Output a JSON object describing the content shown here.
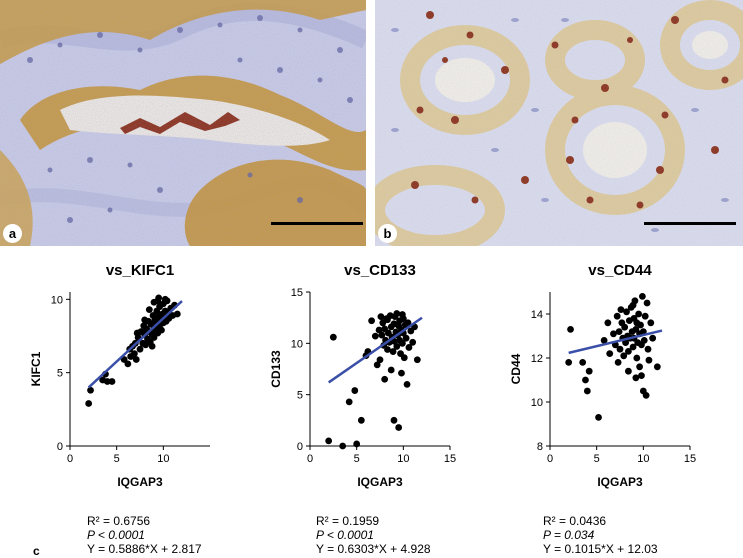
{
  "figure": {
    "panel_a_label": "a",
    "panel_b_label": "b",
    "panel_c_label": "c"
  },
  "colors": {
    "dot": "#000000",
    "fit_line": "#3a4fa8",
    "stain_brown": "#b8861e",
    "stain_dark": "#8a2a10",
    "hematoxylin_blue": "#8f95c8"
  },
  "chart_data": [
    {
      "type": "scatter",
      "title": "vs_KIFC1",
      "xlabel": "IQGAP3",
      "ylabel": "KIFC1",
      "xlim": [
        0,
        15
      ],
      "ylim": [
        0,
        10.5
      ],
      "xticks": [
        "0",
        "5",
        "10"
      ],
      "yticks": [
        "0",
        "5",
        "10"
      ],
      "fit": {
        "slope": 0.5886,
        "intercept": 2.817,
        "x_range": [
          2,
          12
        ]
      },
      "stats": {
        "r2": "R² = 0.6756",
        "p": "P < 0.0001",
        "equation": "Y = 0.5886*X + 2.817"
      },
      "points": [
        [
          2.0,
          2.9
        ],
        [
          2.2,
          3.8
        ],
        [
          3.5,
          4.5
        ],
        [
          3.8,
          4.9
        ],
        [
          4.0,
          4.4
        ],
        [
          4.5,
          4.4
        ],
        [
          5.8,
          5.9
        ],
        [
          6.2,
          5.6
        ],
        [
          6.5,
          6.1
        ],
        [
          6.7,
          6.8
        ],
        [
          6.9,
          6.3
        ],
        [
          7.0,
          7.0
        ],
        [
          7.1,
          5.9
        ],
        [
          7.3,
          7.4
        ],
        [
          7.5,
          6.6
        ],
        [
          7.6,
          7.8
        ],
        [
          7.8,
          7.0
        ],
        [
          7.9,
          8.2
        ],
        [
          8.0,
          7.6
        ],
        [
          8.1,
          6.9
        ],
        [
          8.2,
          8.0
        ],
        [
          8.3,
          7.3
        ],
        [
          8.4,
          8.5
        ],
        [
          8.5,
          7.8
        ],
        [
          8.6,
          7.1
        ],
        [
          8.7,
          8.3
        ],
        [
          8.8,
          7.6
        ],
        [
          8.9,
          8.9
        ],
        [
          9.0,
          8.1
        ],
        [
          9.0,
          7.4
        ],
        [
          9.1,
          8.6
        ],
        [
          9.2,
          7.9
        ],
        [
          9.3,
          9.2
        ],
        [
          9.3,
          8.4
        ],
        [
          9.4,
          7.7
        ],
        [
          9.5,
          8.8
        ],
        [
          9.6,
          8.2
        ],
        [
          9.6,
          9.5
        ],
        [
          9.7,
          8.6
        ],
        [
          9.8,
          7.9
        ],
        [
          9.9,
          9.0
        ],
        [
          10.0,
          8.4
        ],
        [
          10.0,
          9.7
        ],
        [
          10.1,
          8.8
        ],
        [
          10.2,
          9.2
        ],
        [
          10.3,
          8.5
        ],
        [
          10.4,
          9.9
        ],
        [
          10.5,
          9.1
        ],
        [
          10.6,
          8.7
        ],
        [
          10.8,
          9.4
        ],
        [
          11.0,
          8.9
        ],
        [
          11.2,
          9.6
        ],
        [
          11.5,
          9.0
        ],
        [
          8.0,
          8.6
        ],
        [
          8.5,
          9.3
        ],
        [
          9.0,
          9.8
        ],
        [
          9.5,
          10.1
        ],
        [
          7.2,
          7.7
        ],
        [
          6.4,
          6.6
        ],
        [
          8.8,
          6.8
        ],
        [
          9.4,
          9.9
        ],
        [
          10.2,
          10.0
        ]
      ]
    },
    {
      "type": "scatter",
      "title": "vs_CD133",
      "xlabel": "IQGAP3",
      "ylabel": "CD133",
      "xlim": [
        0,
        15
      ],
      "ylim": [
        0,
        15
      ],
      "xticks": [
        "0",
        "5",
        "10",
        "15"
      ],
      "yticks": [
        "0",
        "5",
        "10",
        "15"
      ],
      "fit": {
        "slope": 0.6303,
        "intercept": 4.928,
        "x_range": [
          2,
          12
        ]
      },
      "stats": {
        "r2": "R² = 0.1959",
        "p": "P < 0.0001",
        "equation": "Y = 0.6303*X + 4.928"
      },
      "points": [
        [
          2.0,
          0.5
        ],
        [
          2.5,
          10.6
        ],
        [
          3.5,
          0.0
        ],
        [
          4.2,
          4.3
        ],
        [
          4.8,
          5.4
        ],
        [
          5.0,
          0.2
        ],
        [
          5.5,
          2.5
        ],
        [
          6.0,
          8.8
        ],
        [
          6.2,
          9.2
        ],
        [
          6.6,
          12.2
        ],
        [
          7.0,
          10.7
        ],
        [
          7.2,
          7.9
        ],
        [
          7.4,
          11.3
        ],
        [
          7.5,
          8.4
        ],
        [
          7.7,
          10.8
        ],
        [
          7.8,
          12.0
        ],
        [
          7.9,
          9.8
        ],
        [
          8.0,
          11.4
        ],
        [
          8.1,
          10.3
        ],
        [
          8.2,
          12.4
        ],
        [
          8.3,
          9.4
        ],
        [
          8.4,
          11.0
        ],
        [
          8.5,
          10.1
        ],
        [
          8.6,
          12.7
        ],
        [
          8.7,
          11.6
        ],
        [
          8.8,
          10.6
        ],
        [
          8.9,
          9.2
        ],
        [
          9.0,
          11.9
        ],
        [
          9.0,
          10.2
        ],
        [
          9.1,
          12.6
        ],
        [
          9.2,
          11.1
        ],
        [
          9.3,
          9.7
        ],
        [
          9.3,
          12.9
        ],
        [
          9.4,
          10.8
        ],
        [
          9.5,
          11.7
        ],
        [
          9.6,
          10.3
        ],
        [
          9.6,
          12.2
        ],
        [
          9.7,
          9.0
        ],
        [
          9.8,
          11.3
        ],
        [
          9.9,
          10.0
        ],
        [
          10.0,
          12.4
        ],
        [
          10.0,
          11.0
        ],
        [
          10.1,
          8.6
        ],
        [
          10.2,
          11.8
        ],
        [
          10.3,
          10.5
        ],
        [
          10.5,
          12.0
        ],
        [
          10.6,
          9.6
        ],
        [
          10.8,
          11.2
        ],
        [
          11.0,
          10.1
        ],
        [
          11.2,
          11.6
        ],
        [
          11.5,
          8.4
        ],
        [
          9.0,
          2.5
        ],
        [
          9.5,
          1.8
        ],
        [
          8.7,
          7.4
        ],
        [
          8.0,
          6.5
        ],
        [
          9.8,
          7.1
        ],
        [
          10.4,
          6.0
        ],
        [
          7.6,
          12.6
        ],
        [
          8.3,
          12.3
        ],
        [
          9.9,
          12.8
        ]
      ]
    },
    {
      "type": "scatter",
      "title": "vs_CD44",
      "xlabel": "IQGAP3",
      "ylabel": "CD44",
      "xlim": [
        0,
        15
      ],
      "ylim": [
        8,
        15
      ],
      "xticks": [
        "0",
        "5",
        "10",
        "15"
      ],
      "yticks": [
        "8",
        "10",
        "12",
        "14"
      ],
      "fit": {
        "slope": 0.1015,
        "intercept": 12.03,
        "x_range": [
          2,
          12
        ]
      },
      "stats": {
        "r2": "R² = 0.0436",
        "p": "P = 0.034",
        "equation": "Y = 0.1015*X + 12.03"
      },
      "points": [
        [
          2.2,
          13.3
        ],
        [
          2.0,
          11.8
        ],
        [
          3.5,
          11.8
        ],
        [
          3.8,
          11.0
        ],
        [
          4.0,
          10.5
        ],
        [
          4.2,
          11.4
        ],
        [
          5.2,
          9.3
        ],
        [
          5.8,
          12.8
        ],
        [
          6.2,
          13.6
        ],
        [
          6.4,
          12.2
        ],
        [
          6.8,
          13.1
        ],
        [
          7.0,
          12.6
        ],
        [
          7.2,
          13.9
        ],
        [
          7.4,
          13.2
        ],
        [
          7.5,
          12.4
        ],
        [
          7.7,
          13.6
        ],
        [
          7.8,
          12.9
        ],
        [
          7.9,
          12.1
        ],
        [
          8.0,
          13.4
        ],
        [
          8.1,
          12.7
        ],
        [
          8.2,
          14.1
        ],
        [
          8.3,
          13.0
        ],
        [
          8.4,
          12.3
        ],
        [
          8.5,
          13.7
        ],
        [
          8.6,
          12.9
        ],
        [
          8.7,
          14.3
        ],
        [
          8.8,
          13.2
        ],
        [
          8.9,
          12.5
        ],
        [
          9.0,
          13.8
        ],
        [
          9.0,
          12.9
        ],
        [
          9.1,
          14.6
        ],
        [
          9.2,
          13.3
        ],
        [
          9.3,
          12.0
        ],
        [
          9.3,
          13.6
        ],
        [
          9.4,
          12.7
        ],
        [
          9.5,
          14.0
        ],
        [
          9.6,
          13.1
        ],
        [
          9.6,
          11.6
        ],
        [
          9.7,
          13.5
        ],
        [
          9.8,
          12.6
        ],
        [
          9.9,
          14.8
        ],
        [
          10.0,
          13.2
        ],
        [
          10.0,
          10.5
        ],
        [
          10.1,
          12.8
        ],
        [
          10.2,
          13.9
        ],
        [
          10.3,
          10.3
        ],
        [
          10.4,
          14.5
        ],
        [
          10.5,
          12.4
        ],
        [
          10.8,
          13.6
        ],
        [
          11.0,
          12.9
        ],
        [
          11.5,
          11.6
        ],
        [
          8.4,
          11.4
        ],
        [
          9.2,
          11.1
        ],
        [
          7.6,
          14.2
        ],
        [
          10.6,
          11.9
        ],
        [
          8.9,
          14.4
        ],
        [
          7.3,
          11.8
        ],
        [
          9.8,
          11.2
        ]
      ]
    }
  ]
}
